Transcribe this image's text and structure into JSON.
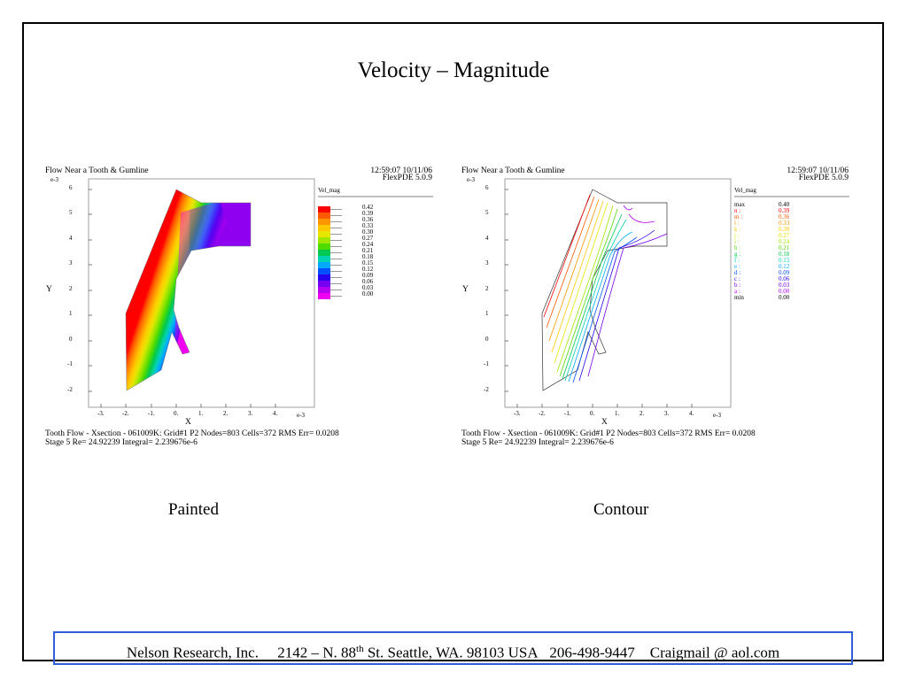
{
  "slide": {
    "title": "Velocity – Magnitude",
    "caption_left": "Painted",
    "caption_right": "Contour"
  },
  "plots": [
    {
      "header_title": "Flow Near a Tooth & Gumline",
      "timestamp": "12:59:07 10/11/06",
      "software": "FlexPDE 5.0.9",
      "y_exponent": "e-3",
      "x_exponent": "e-3",
      "x_axis_label": "X",
      "y_axis_label": "Y",
      "x_ticks": [
        "-3.",
        "-2.",
        "-1.",
        "0.",
        "1.",
        "2.",
        "3.",
        "4."
      ],
      "y_ticks": [
        "6",
        "5",
        "4",
        "3",
        "2",
        "1",
        "0",
        "-1",
        "-2"
      ],
      "legend_title": "Vel_mag",
      "legend_values": [
        "0.42",
        "0.39",
        "0.36",
        "0.33",
        "0.30",
        "0.27",
        "0.24",
        "0.21",
        "0.18",
        "0.15",
        "0.12",
        "0.09",
        "0.06",
        "0.03",
        "0.00"
      ],
      "footer_line1": "Tooth Flow - Xsection - 061009K:  Grid#1  P2  Nodes=803 Cells=372 RMS Err= 0.0208",
      "footer_line2": "Stage 5  Re=  24.92239  Integral=  2.239676e-6"
    },
    {
      "header_title": "Flow Near a Tooth & Gumline",
      "timestamp": "12:59:07 10/11/06",
      "software": "FlexPDE 5.0.9",
      "y_exponent": "e-3",
      "x_exponent": "e-3",
      "x_axis_label": "X",
      "y_axis_label": "Y",
      "x_ticks": [
        "-3.",
        "-2.",
        "-1.",
        "0.",
        "1.",
        "2.",
        "3.",
        "4."
      ],
      "y_ticks": [
        "6",
        "5",
        "4",
        "3",
        "2",
        "1",
        "0",
        "-1",
        "-2"
      ],
      "legend_title": "Vel_mag",
      "legend_rows": [
        {
          "key": "max",
          "value": "0.40"
        },
        {
          "key": "n :",
          "value": "0.39"
        },
        {
          "key": "m :",
          "value": "0.36"
        },
        {
          "key": "l :",
          "value": "0.33"
        },
        {
          "key": "k :",
          "value": "0.30"
        },
        {
          "key": "j :",
          "value": "0.27"
        },
        {
          "key": "i :",
          "value": "0.24"
        },
        {
          "key": "h :",
          "value": "0.21"
        },
        {
          "key": "g :",
          "value": "0.18"
        },
        {
          "key": "f :",
          "value": "0.15"
        },
        {
          "key": "e :",
          "value": "0.12"
        },
        {
          "key": "d :",
          "value": "0.09"
        },
        {
          "key": "c :",
          "value": "0.06"
        },
        {
          "key": "b :",
          "value": "0.03"
        },
        {
          "key": "a :",
          "value": "0.00"
        },
        {
          "key": "min",
          "value": "0.00"
        }
      ],
      "footer_line1": "Tooth Flow - Xsection - 061009K:  Grid#1  P2  Nodes=803 Cells=372 RMS Err= 0.0208",
      "footer_line2": "Stage 5  Re=  24.92239  Integral=  2.239676e-6"
    }
  ],
  "colors": {
    "scale": [
      "#ff0000",
      "#ff5a00",
      "#ff9600",
      "#ffc800",
      "#e6e600",
      "#a0e600",
      "#50dc00",
      "#00c850",
      "#00d2b4",
      "#00aaff",
      "#0050ff",
      "#2800f0",
      "#7800f0",
      "#b400f0",
      "#f000f0"
    ],
    "footer_border": "#2f5fd8"
  },
  "footer": {
    "company": "Nelson Research, Inc.",
    "address_pre": "2142 –  N. 88",
    "address_sup": "th",
    "address_post": " St. Seattle, WA. 98103   USA",
    "phone": "206-498-9447",
    "email": "Craigmail @ aol.com"
  }
}
